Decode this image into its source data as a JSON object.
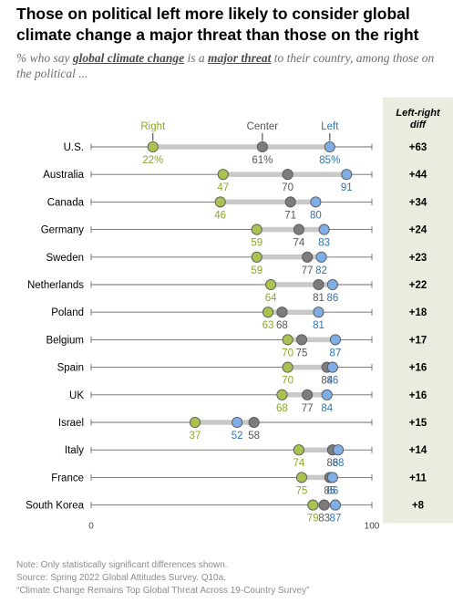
{
  "title": "Those on political left more likely to consider global climate change a major threat than those on the right",
  "subtitle": {
    "prefix": "% who say ",
    "term1": "global climate change",
    "mid": " is a ",
    "term2": "major threat",
    "suffix": " to their country, among those on the political ..."
  },
  "chart_data": {
    "type": "dot-plot",
    "legend": [
      "Right",
      "Center",
      "Left"
    ],
    "diff_header": "Left-right diff",
    "xlim": [
      0,
      100
    ],
    "x_ticks": [
      "0",
      "100"
    ],
    "colors": {
      "right": "#a9c350",
      "center": "#7c7c7c",
      "left": "#7faee6"
    },
    "label_colors": {
      "right": "#8aa72e",
      "center": "#555555",
      "left": "#2f74b5"
    },
    "rows": [
      {
        "country": "U.S.",
        "right": 22,
        "center": 61,
        "left": 85,
        "diff": "+63",
        "right_label": "22%",
        "center_label": "61%",
        "left_label": "85%"
      },
      {
        "country": "Australia",
        "right": 47,
        "center": 70,
        "left": 91,
        "diff": "+44",
        "right_label": "47",
        "center_label": "70",
        "left_label": "91"
      },
      {
        "country": "Canada",
        "right": 46,
        "center": 71,
        "left": 80,
        "diff": "+34",
        "right_label": "46",
        "center_label": "71",
        "left_label": "80"
      },
      {
        "country": "Germany",
        "right": 59,
        "center": 74,
        "left": 83,
        "diff": "+24",
        "right_label": "59",
        "center_label": "74",
        "left_label": "83"
      },
      {
        "country": "Sweden",
        "right": 59,
        "center": 77,
        "left": 82,
        "diff": "+23",
        "right_label": "59",
        "center_label": "77",
        "left_label": "82"
      },
      {
        "country": "Netherlands",
        "right": 64,
        "center": 81,
        "left": 86,
        "diff": "+22",
        "right_label": "64",
        "center_label": "81",
        "left_label": "86"
      },
      {
        "country": "Poland",
        "right": 63,
        "center": 68,
        "left": 81,
        "diff": "+18",
        "right_label": "63",
        "center_label": "68",
        "left_label": "81"
      },
      {
        "country": "Belgium",
        "right": 70,
        "center": 75,
        "left": 87,
        "diff": "+17",
        "right_label": "70",
        "center_label": "75",
        "left_label": "87"
      },
      {
        "country": "Spain",
        "right": 70,
        "center": 84,
        "left": 86,
        "diff": "+16",
        "right_label": "70",
        "center_label": "84",
        "left_label": "86"
      },
      {
        "country": "UK",
        "right": 68,
        "center": 77,
        "left": 84,
        "diff": "+16",
        "right_label": "68",
        "center_label": "77",
        "left_label": "84"
      },
      {
        "country": "Israel",
        "right": 37,
        "center": 58,
        "left": 52,
        "diff": "+15",
        "right_label": "37",
        "center_label": "58",
        "left_label": "52"
      },
      {
        "country": "Italy",
        "right": 74,
        "center": 86,
        "left": 88,
        "diff": "+14",
        "right_label": "74",
        "center_label": "86",
        "left_label": "88"
      },
      {
        "country": "France",
        "right": 75,
        "center": 85,
        "left": 86,
        "diff": "+11",
        "right_label": "75",
        "center_label": "85",
        "left_label": "86"
      },
      {
        "country": "South Korea",
        "right": 79,
        "center": 83,
        "left": 87,
        "diff": "+8",
        "right_label": "79",
        "center_label": "83",
        "left_label": "87"
      }
    ]
  },
  "footnotes": {
    "note": "Note: Only statistically significant differences shown.",
    "source": "Source: Spring 2022 Global Attitudes Survey. Q10a.",
    "report": "“Climate Change Remains Top Global Threat Across 19-Country Survey”"
  }
}
